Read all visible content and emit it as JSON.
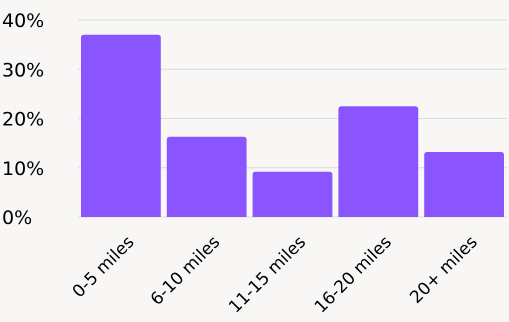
{
  "chart_data": {
    "type": "bar",
    "title": "",
    "xlabel": "",
    "ylabel": "",
    "categories": [
      "0-5 miles",
      "6-10 miles",
      "11-15 miles",
      "16-20 miles",
      "20+ miles"
    ],
    "values": [
      37,
      16.3,
      9.2,
      22.5,
      13.2
    ],
    "ylim": [
      0,
      40
    ],
    "yticks": [
      0,
      10,
      20,
      30,
      40
    ],
    "ytick_labels": [
      "0%",
      "10%",
      "20%",
      "30%",
      "40%"
    ],
    "grid": true,
    "bar_color": "#8a55ff",
    "background": "#f8f7f5"
  }
}
